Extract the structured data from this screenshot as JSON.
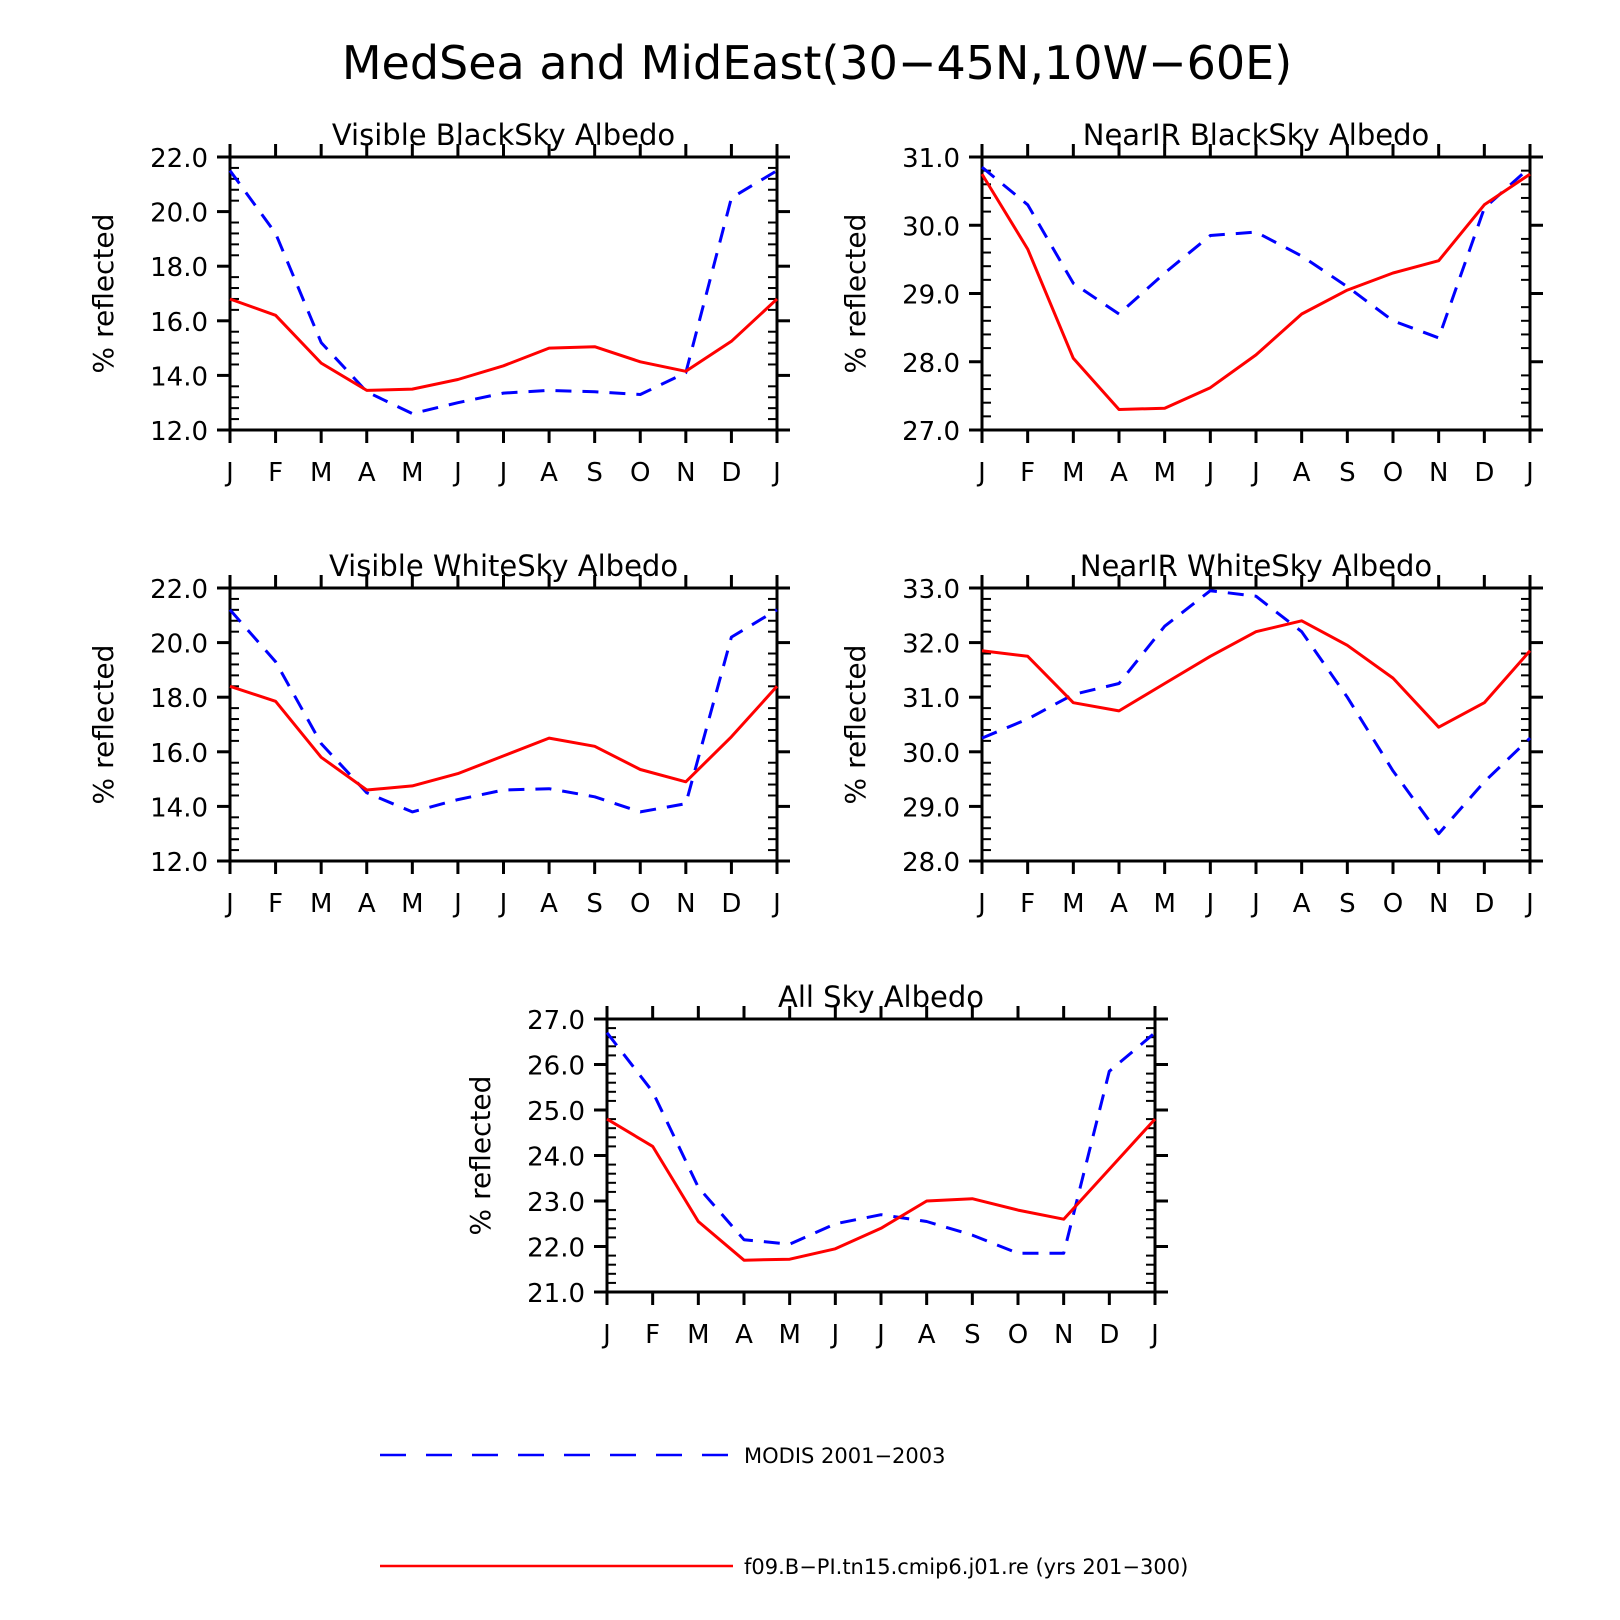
{
  "figure_title": "MedSea and MidEast(30−45N,10W−60E)",
  "colors": {
    "modis": "#0000ff",
    "model": "#ff0000",
    "axis": "#000000"
  },
  "legend": [
    {
      "label": "MODIS 2001−2003",
      "color": "#0000ff",
      "style": "dashed"
    },
    {
      "label": "f09.B−PI.tn15.cmip6.j01.re (yrs 201−300)",
      "color": "#ff0000",
      "style": "solid"
    }
  ],
  "chart_data": [
    {
      "type": "line",
      "title": "Visible BlackSky Albedo",
      "ylabel": "% reflected",
      "ylim": [
        12.0,
        22.0
      ],
      "yticks": [
        "12.0",
        "14.0",
        "16.0",
        "18.0",
        "20.0",
        "22.0"
      ],
      "categories": [
        "J",
        "F",
        "M",
        "A",
        "M",
        "J",
        "J",
        "A",
        "S",
        "O",
        "N",
        "D",
        "J"
      ],
      "series": [
        {
          "name": "MODIS 2001−2003",
          "style": "dashed",
          "color": "#0000ff",
          "values": [
            21.5,
            19.2,
            15.2,
            13.4,
            12.6,
            13.0,
            13.35,
            13.45,
            13.4,
            13.3,
            14.1,
            20.5,
            21.5
          ]
        },
        {
          "name": "f09.B−PI.tn15.cmip6.j01.re (yrs 201−300)",
          "style": "solid",
          "color": "#ff0000",
          "values": [
            16.8,
            16.2,
            14.45,
            13.45,
            13.5,
            13.85,
            14.35,
            15.0,
            15.05,
            14.5,
            14.15,
            15.25,
            16.8
          ]
        }
      ]
    },
    {
      "type": "line",
      "title": "NearIR BlackSky Albedo",
      "ylabel": "% reflected",
      "ylim": [
        27.0,
        31.0
      ],
      "yticks": [
        "27.0",
        "28.0",
        "29.0",
        "30.0",
        "31.0"
      ],
      "categories": [
        "J",
        "F",
        "M",
        "A",
        "M",
        "J",
        "J",
        "A",
        "S",
        "O",
        "N",
        "D",
        "J"
      ],
      "series": [
        {
          "name": "MODIS 2001−2003",
          "style": "dashed",
          "color": "#0000ff",
          "values": [
            30.85,
            30.3,
            29.15,
            28.7,
            29.3,
            29.85,
            29.9,
            29.55,
            29.1,
            28.6,
            28.35,
            30.25,
            30.85
          ]
        },
        {
          "name": "f09.B−PI.tn15.cmip6.j01.re (yrs 201−300)",
          "style": "solid",
          "color": "#ff0000",
          "values": [
            30.75,
            29.65,
            28.05,
            27.3,
            27.32,
            27.62,
            28.1,
            28.7,
            29.05,
            29.3,
            29.48,
            30.3,
            30.75
          ]
        }
      ]
    },
    {
      "type": "line",
      "title": "Visible WhiteSky Albedo",
      "ylabel": "% reflected",
      "ylim": [
        12.0,
        22.0
      ],
      "yticks": [
        "12.0",
        "14.0",
        "16.0",
        "18.0",
        "20.0",
        "22.0"
      ],
      "categories": [
        "J",
        "F",
        "M",
        "A",
        "M",
        "J",
        "J",
        "A",
        "S",
        "O",
        "N",
        "D",
        "J"
      ],
      "series": [
        {
          "name": "MODIS 2001−2003",
          "style": "dashed",
          "color": "#0000ff",
          "values": [
            21.2,
            19.3,
            16.3,
            14.5,
            13.8,
            14.25,
            14.6,
            14.65,
            14.35,
            13.8,
            14.1,
            20.2,
            21.2
          ]
        },
        {
          "name": "f09.B−PI.tn15.cmip6.j01.re (yrs 201−300)",
          "style": "solid",
          "color": "#ff0000",
          "values": [
            18.4,
            17.85,
            15.8,
            14.6,
            14.75,
            15.2,
            15.85,
            16.5,
            16.2,
            15.35,
            14.9,
            16.55,
            18.4
          ]
        }
      ]
    },
    {
      "type": "line",
      "title": "NearIR WhiteSky Albedo",
      "ylabel": "% reflected",
      "ylim": [
        28.0,
        33.0
      ],
      "yticks": [
        "28.0",
        "29.0",
        "30.0",
        "31.0",
        "32.0",
        "33.0"
      ],
      "categories": [
        "J",
        "F",
        "M",
        "A",
        "M",
        "J",
        "J",
        "A",
        "S",
        "O",
        "N",
        "D",
        "J"
      ],
      "series": [
        {
          "name": "MODIS 2001−2003",
          "style": "dashed",
          "color": "#0000ff",
          "values": [
            30.25,
            30.6,
            31.05,
            31.25,
            32.3,
            32.95,
            32.85,
            32.2,
            31.0,
            29.65,
            28.5,
            29.45,
            30.25
          ]
        },
        {
          "name": "f09.B−PI.tn15.cmip6.j01.re (yrs 201−300)",
          "style": "solid",
          "color": "#ff0000",
          "values": [
            31.85,
            31.75,
            30.9,
            30.75,
            31.25,
            31.75,
            32.2,
            32.4,
            31.95,
            31.35,
            30.45,
            30.9,
            31.85
          ]
        }
      ]
    },
    {
      "type": "line",
      "title": "All Sky Albedo",
      "ylabel": "% reflected",
      "ylim": [
        21.0,
        27.0
      ],
      "yticks": [
        "21.0",
        "22.0",
        "23.0",
        "24.0",
        "25.0",
        "26.0",
        "27.0"
      ],
      "categories": [
        "J",
        "F",
        "M",
        "A",
        "M",
        "J",
        "J",
        "A",
        "S",
        "O",
        "N",
        "D",
        "J"
      ],
      "series": [
        {
          "name": "MODIS 2001−2003",
          "style": "dashed",
          "color": "#0000ff",
          "values": [
            26.7,
            25.4,
            23.3,
            22.15,
            22.05,
            22.5,
            22.7,
            22.55,
            22.25,
            21.85,
            21.85,
            25.85,
            26.7
          ]
        },
        {
          "name": "f09.B−PI.tn15.cmip6.j01.re (yrs 201−300)",
          "style": "solid",
          "color": "#ff0000",
          "values": [
            24.8,
            24.2,
            22.55,
            21.7,
            21.72,
            21.95,
            22.4,
            23.0,
            23.05,
            22.8,
            22.6,
            23.7,
            24.8
          ]
        }
      ]
    }
  ]
}
